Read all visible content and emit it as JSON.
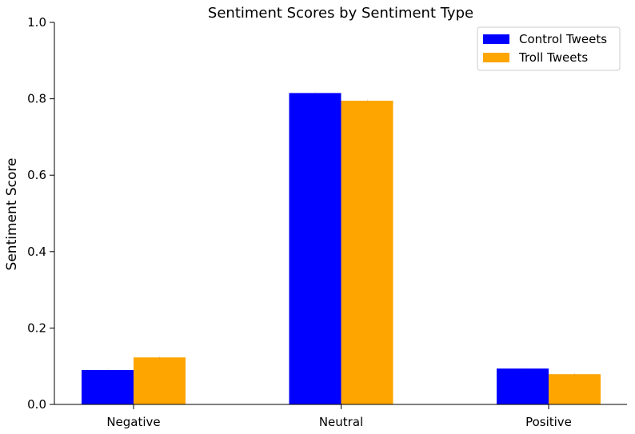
{
  "chart_data": {
    "type": "bar",
    "title": "Sentiment Scores by Sentiment Type",
    "xlabel": "",
    "ylabel": "Sentiment Score",
    "categories": [
      "Negative",
      "Neutral",
      "Positive"
    ],
    "series": [
      {
        "name": "Control Tweets",
        "values": [
          0.09,
          0.815,
          0.094
        ],
        "color": "#0000ff"
      },
      {
        "name": "Troll Tweets",
        "values": [
          0.123,
          0.795,
          0.079
        ],
        "color": "#ffa500"
      }
    ],
    "ylim": [
      0,
      1.0
    ],
    "yticks": [
      "0.0",
      "0.2",
      "0.4",
      "0.6",
      "0.8",
      "1.0"
    ],
    "grid": false,
    "legend_position": "top-right"
  }
}
